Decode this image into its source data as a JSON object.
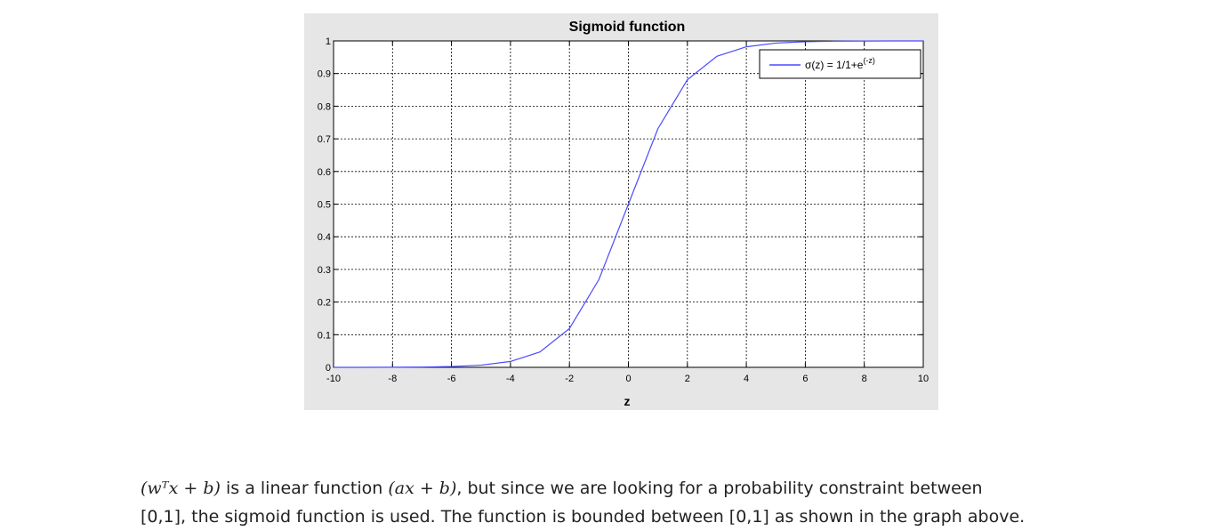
{
  "chart_data": {
    "type": "line",
    "title": "Sigmoid function",
    "xlabel": "z",
    "ylabel": "",
    "xlim": [
      -10,
      10
    ],
    "ylim": [
      0,
      1
    ],
    "xticks": [
      "-10",
      "-8",
      "-6",
      "-4",
      "-2",
      "0",
      "2",
      "4",
      "6",
      "8",
      "10"
    ],
    "yticks": [
      "0",
      "0.1",
      "0.2",
      "0.3",
      "0.4",
      "0.5",
      "0.6",
      "0.7",
      "0.8",
      "0.9",
      "1"
    ],
    "grid": true,
    "legend_position": "top-right",
    "series": [
      {
        "name": "σ(z) = 1/1+e",
        "name_superscript": "(-z)",
        "color": "#4a4aff",
        "x": [
          -10,
          -9,
          -8,
          -7,
          -6,
          -5,
          -4,
          -3,
          -2,
          -1,
          0,
          1,
          2,
          3,
          4,
          5,
          6,
          7,
          8,
          9,
          10
        ],
        "y": [
          5e-05,
          0.0001,
          0.0003,
          0.0009,
          0.0025,
          0.0067,
          0.018,
          0.047,
          0.119,
          0.269,
          0.5,
          0.731,
          0.881,
          0.953,
          0.982,
          0.9933,
          0.9975,
          0.9991,
          0.9997,
          0.9999,
          1.0
        ]
      }
    ]
  },
  "caption": {
    "line1_expr": "(wᵀx + b)",
    "line1_a": " is a linear function ",
    "line1_expr2": "(ax + b)",
    "line1_b": ", but since we are looking for a probability constraint between",
    "line2": "[0,1], the sigmoid function is used. The function is bounded between [0,1] as shown in the graph above."
  }
}
